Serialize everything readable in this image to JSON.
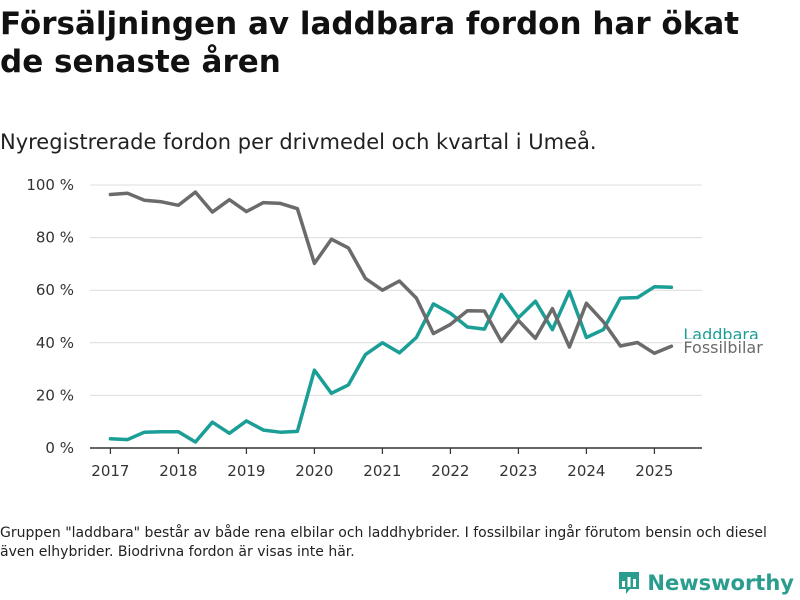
{
  "title": "Försäljningen av laddbara fordon har ökat de senaste åren",
  "subtitle": "Nyregistrerade fordon per drivmedel och kvartal i Umeå.",
  "footnote": "Gruppen \"laddbara\" består av både rena elbilar och laddhybrider. I fossilbilar ingår förutom bensin och diesel även elhybrider. Biodrivna fordon är visas inte här.",
  "brand": {
    "name": "Newsworthy",
    "icon": "bar-chart-icon",
    "color": "#2a9d8f"
  },
  "chart_data": {
    "type": "line",
    "title": "",
    "xlabel": "",
    "ylabel": "",
    "ylim": [
      0,
      100
    ],
    "xlim": [
      2016.7,
      2025.7
    ],
    "y_ticks": [
      0,
      20,
      40,
      60,
      80,
      100
    ],
    "y_tick_labels": [
      "0 %",
      "20 %",
      "40 %",
      "60 %",
      "80 %",
      "100 %"
    ],
    "x_ticks": [
      2017,
      2018,
      2019,
      2020,
      2021,
      2022,
      2023,
      2024,
      2025
    ],
    "x_tick_labels": [
      "2017",
      "2018",
      "2019",
      "2020",
      "2021",
      "2022",
      "2023",
      "2024",
      "2025"
    ],
    "grid": true,
    "legend": "direct labels at line ends (right)",
    "x": [
      2017.0,
      2017.25,
      2017.5,
      2017.75,
      2018.0,
      2018.25,
      2018.5,
      2018.75,
      2019.0,
      2019.25,
      2019.5,
      2019.75,
      2020.0,
      2020.25,
      2020.5,
      2020.75,
      2021.0,
      2021.25,
      2021.5,
      2021.75,
      2022.0,
      2022.25,
      2022.5,
      2022.75,
      2023.0,
      2023.25,
      2023.5,
      2023.75,
      2024.0,
      2024.25,
      2024.5,
      2024.75,
      2025.0,
      2025.25
    ],
    "series": [
      {
        "name": "Laddbara",
        "color": "#1a9e96",
        "values": [
          3.5,
          3.2,
          6.0,
          6.2,
          6.2,
          2.3,
          9.8,
          5.6,
          10.3,
          6.8,
          6.0,
          6.3,
          29.6,
          20.8,
          24.0,
          35.5,
          40.0,
          36.2,
          42.0,
          54.8,
          51.2,
          46.0,
          45.2,
          58.4,
          49.5,
          55.8,
          45.0,
          59.5,
          42.0,
          45.0,
          57.0,
          57.2,
          61.3,
          61.1
        ]
      },
      {
        "name": "Fossilbilar",
        "color": "#6b6b6b",
        "values": [
          96.4,
          96.9,
          94.2,
          93.6,
          92.3,
          97.3,
          89.7,
          94.4,
          89.9,
          93.3,
          93.0,
          91.0,
          70.2,
          79.4,
          76.1,
          64.5,
          60.0,
          63.5,
          57.0,
          43.5,
          47.0,
          52.2,
          52.1,
          40.5,
          48.5,
          41.7,
          53.0,
          38.4,
          55.0,
          48.0,
          38.8,
          40.1,
          36.0,
          38.7
        ]
      }
    ]
  }
}
